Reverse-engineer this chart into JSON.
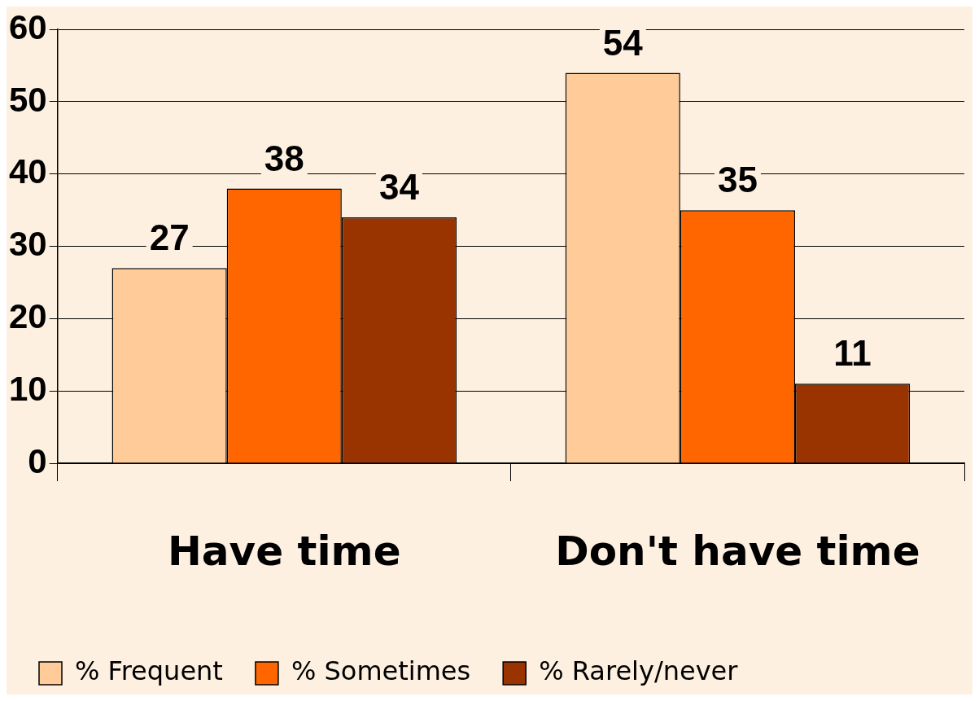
{
  "chart_data": {
    "type": "bar",
    "categories": [
      "Have time",
      "Don't have time"
    ],
    "series": [
      {
        "name": "% Frequent",
        "color": "#ffcc99",
        "values": [
          27,
          54
        ]
      },
      {
        "name": "% Sometimes",
        "color": "#ff6600",
        "values": [
          38,
          35
        ]
      },
      {
        "name": "% Rarely/never",
        "color": "#993300",
        "values": [
          34,
          11
        ]
      }
    ],
    "ylim": [
      0,
      60
    ],
    "yticks": [
      0,
      10,
      20,
      30,
      40,
      50,
      60
    ],
    "grid": "y",
    "legend": "bottom",
    "data_labels": true
  }
}
